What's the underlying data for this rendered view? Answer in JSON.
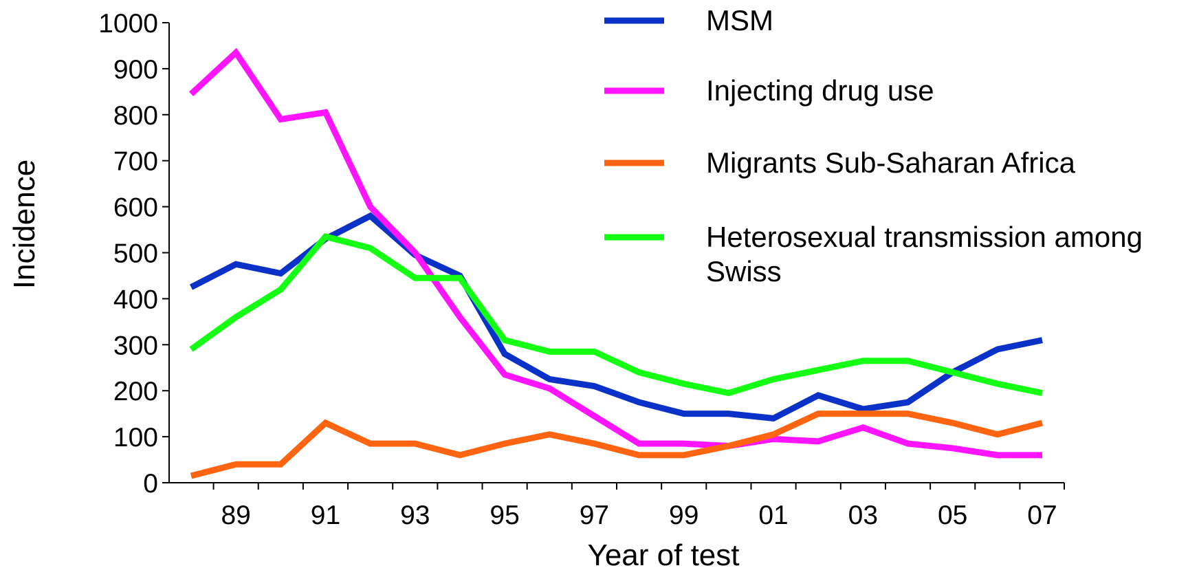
{
  "chart_data": {
    "type": "line",
    "x_label": "Year of test",
    "y_label": "Incidence",
    "categories": [
      null,
      "89",
      null,
      "91",
      null,
      "93",
      null,
      "95",
      null,
      "97",
      null,
      "99",
      null,
      "01",
      null,
      "03",
      null,
      "05",
      null,
      "07"
    ],
    "series": [
      {
        "name": "MSM",
        "color": "#0a32c8",
        "values": [
          425,
          475,
          455,
          530,
          580,
          495,
          450,
          280,
          225,
          210,
          175,
          150,
          150,
          140,
          190,
          160,
          175,
          240,
          290,
          310
        ]
      },
      {
        "name": "Injecting drug use",
        "color": "#ff14ff",
        "values": [
          845,
          935,
          790,
          805,
          600,
          500,
          360,
          235,
          205,
          145,
          85,
          85,
          80,
          95,
          90,
          120,
          85,
          75,
          60,
          60
        ]
      },
      {
        "name": "Migrants Sub-Saharan Africa",
        "color": "#ff6410",
        "values": [
          15,
          40,
          40,
          130,
          85,
          85,
          60,
          85,
          105,
          85,
          60,
          60,
          80,
          105,
          150,
          150,
          150,
          130,
          105,
          130
        ]
      },
      {
        "name": "Heterosexual transmission among Swiss",
        "color": "#14ff14",
        "values": [
          290,
          360,
          420,
          535,
          510,
          445,
          445,
          310,
          285,
          285,
          240,
          215,
          195,
          225,
          245,
          265,
          265,
          240,
          215,
          195
        ]
      }
    ],
    "ylim": [
      0,
      1000
    ],
    "yticks": [
      0,
      100,
      200,
      300,
      400,
      500,
      600,
      700,
      800,
      900,
      1000
    ],
    "grid": false
  }
}
